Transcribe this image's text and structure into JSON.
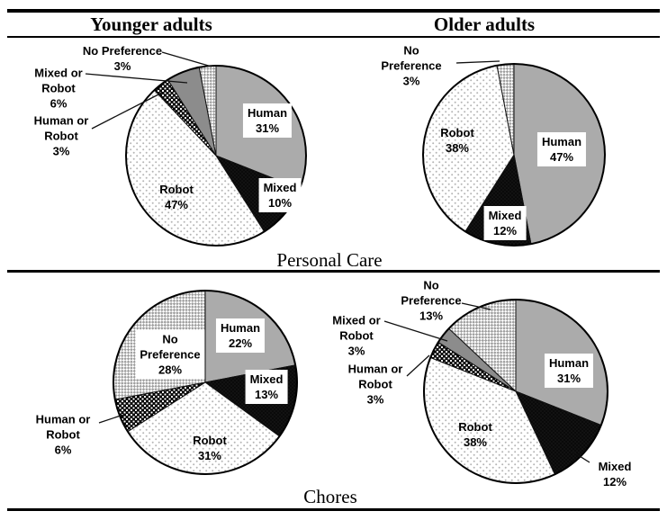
{
  "figure": {
    "column_headers": [
      "Younger adults",
      "Older adults"
    ],
    "row_captions": [
      "Personal Care",
      "Chores"
    ]
  },
  "category_styles": {
    "Human": {
      "fill": "#ababab",
      "pattern": "solid"
    },
    "Mixed": {
      "fill": "#0a0a0a",
      "pattern": "black-speckle"
    },
    "Robot": {
      "fill": "#ffffff",
      "pattern": "gray-dots",
      "pattern_color": "#b5b5b5"
    },
    "Human or Robot": {
      "fill": "#000000",
      "pattern": "fine-checker-black-white"
    },
    "Mixed or Robot": {
      "fill": "#8c8c8c",
      "pattern": "solid"
    },
    "No Preference": {
      "fill": "#ffffff",
      "pattern": "fine-checker-gray-white",
      "pattern_color": "#9d9d9d"
    }
  },
  "chart_data": [
    {
      "type": "pie",
      "row": "Personal Care",
      "column": "Younger adults",
      "title": "Personal Care - Younger adults",
      "unit": "%",
      "start_angle_deg": 0,
      "direction": "clockwise",
      "slices": [
        {
          "label": "Human",
          "value": 31
        },
        {
          "label": "Mixed",
          "value": 10
        },
        {
          "label": "Robot",
          "value": 47
        },
        {
          "label": "Human or Robot",
          "value": 3
        },
        {
          "label": "Mixed or Robot",
          "value": 6
        },
        {
          "label": "No Preference",
          "value": 3
        }
      ]
    },
    {
      "type": "pie",
      "row": "Personal Care",
      "column": "Older adults",
      "title": "Personal Care - Older adults",
      "unit": "%",
      "start_angle_deg": 0,
      "direction": "clockwise",
      "slices": [
        {
          "label": "Human",
          "value": 47
        },
        {
          "label": "Mixed",
          "value": 12
        },
        {
          "label": "Robot",
          "value": 38
        },
        {
          "label": "No Preference",
          "value": 3
        }
      ]
    },
    {
      "type": "pie",
      "row": "Chores",
      "column": "Younger adults",
      "title": "Chores - Younger adults",
      "unit": "%",
      "start_angle_deg": 0,
      "direction": "clockwise",
      "slices": [
        {
          "label": "Human",
          "value": 22
        },
        {
          "label": "Mixed",
          "value": 13
        },
        {
          "label": "Robot",
          "value": 31
        },
        {
          "label": "Human or Robot",
          "value": 6
        },
        {
          "label": "No Preference",
          "value": 28
        }
      ]
    },
    {
      "type": "pie",
      "row": "Chores",
      "column": "Older adults",
      "title": "Chores - Older adults",
      "unit": "%",
      "start_angle_deg": 0,
      "direction": "clockwise",
      "slices": [
        {
          "label": "Human",
          "value": 31
        },
        {
          "label": "Mixed",
          "value": 12
        },
        {
          "label": "Robot",
          "value": 38
        },
        {
          "label": "Human or Robot",
          "value": 3
        },
        {
          "label": "Mixed or Robot",
          "value": 3
        },
        {
          "label": "No Preference",
          "value": 13
        }
      ]
    }
  ]
}
